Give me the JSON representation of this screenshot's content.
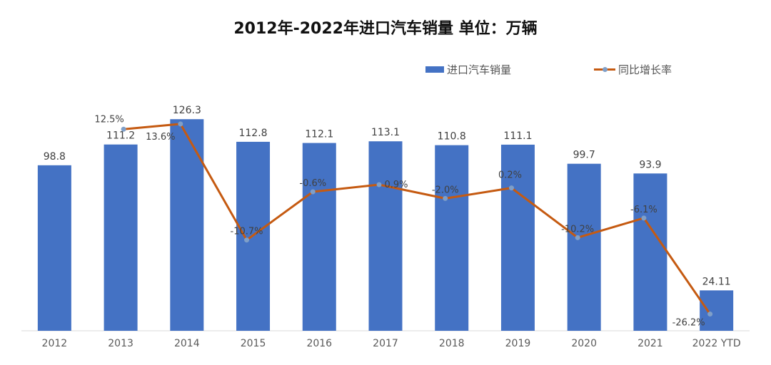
{
  "chart_data": {
    "type": "bar",
    "title": "2012年-2022年进口汽车销量  单位：万辆",
    "categories": [
      "2012",
      "2013",
      "2014",
      "2015",
      "2016",
      "2017",
      "2018",
      "2019",
      "2020",
      "2021",
      "2022 YTD"
    ],
    "series": [
      {
        "name": "进口汽车销量",
        "type": "bar",
        "color": "#4472c4",
        "values": [
          98.8,
          111.2,
          126.3,
          112.8,
          112.1,
          113.1,
          110.8,
          111.1,
          99.7,
          93.9,
          24.11
        ],
        "labels": [
          "98.8",
          "111.2",
          "126.3",
          "112.8",
          "112.1",
          "113.1",
          "110.8",
          "111.1",
          "99.7",
          "93.9",
          "24.11"
        ]
      },
      {
        "name": "同比增长率",
        "type": "line",
        "color": "#c55a11",
        "values": [
          null,
          12.5,
          13.6,
          -10.7,
          -0.6,
          0.9,
          -2.0,
          0.2,
          -10.2,
          -6.1,
          -26.2
        ],
        "labels": [
          null,
          "12.5%",
          "13.6%",
          "-10.7%",
          "-0.6%",
          "0.9%",
          "-2.0%",
          "0.2%",
          "-10.2%",
          "-6.1%",
          "-26.2%"
        ]
      }
    ],
    "bar_axis_range": [
      0,
      135
    ],
    "line_axis_range": [
      -30,
      20
    ],
    "legend_position": "top-right",
    "grid": false
  }
}
